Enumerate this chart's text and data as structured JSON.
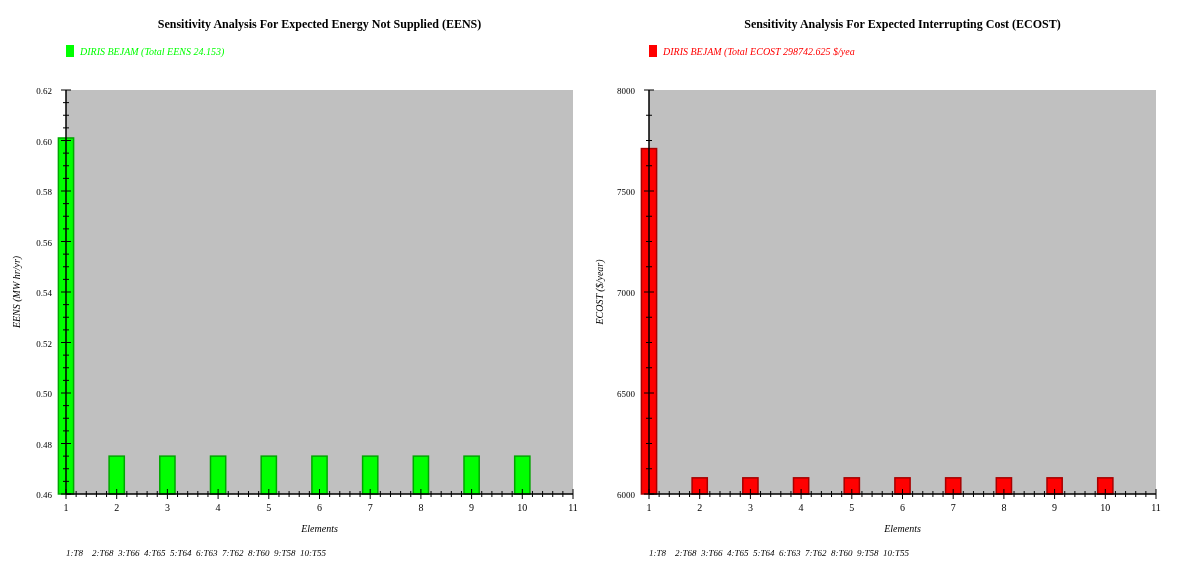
{
  "chart_data": [
    {
      "type": "bar",
      "title": "Sensitivity Analysis For Expected Energy Not Supplied (EENS)",
      "xlabel": "Elements",
      "ylabel": "EENS (MW hr/yr)",
      "x": [
        1,
        2,
        3,
        4,
        5,
        6,
        7,
        8,
        9,
        10
      ],
      "series": [
        {
          "name": "DIRIS BEJAM (Total EENS 24.153)",
          "color": "#00ff00",
          "values": [
            0.601,
            0.475,
            0.475,
            0.475,
            0.475,
            0.475,
            0.475,
            0.475,
            0.475,
            0.475
          ]
        }
      ],
      "xlim": [
        1,
        11
      ],
      "xticks": [
        1,
        2,
        3,
        4,
        5,
        6,
        7,
        8,
        9,
        10,
        11
      ],
      "ylim": [
        0.46,
        0.62
      ],
      "yticks": [
        0.46,
        0.48,
        {
          "value": 0.5,
          "label": "0.50"
        },
        0.52,
        0.54,
        0.56,
        0.58,
        {
          "value": 0.6,
          "label": "0.60"
        },
        0.62
      ],
      "annotations": [
        "1:T8",
        "2:T68",
        "3:T66",
        "4:T65",
        "5:T64",
        "6:T63",
        "7:T62",
        "8:T60",
        "9:T58",
        "10:T55"
      ],
      "legend": "top left",
      "grid": false
    },
    {
      "type": "bar",
      "title": "Sensitivity Analysis For Expected Interrupting Cost (ECOST)",
      "xlabel": "Elements",
      "ylabel": "ECOST ($/year)",
      "x": [
        1,
        2,
        3,
        4,
        5,
        6,
        7,
        8,
        9,
        10
      ],
      "series": [
        {
          "name": "DIRIS BEJAM (Total ECOST 298742.625 $/yea",
          "color": "#ff0000",
          "values": [
            7710,
            6080,
            6080,
            6080,
            6080,
            6080,
            6080,
            6080,
            6080,
            6080
          ]
        }
      ],
      "xlim": [
        1,
        11
      ],
      "xticks": [
        1,
        2,
        3,
        4,
        5,
        6,
        7,
        8,
        9,
        10,
        11
      ],
      "ylim": [
        6000,
        8000
      ],
      "yticks": [
        6000,
        6500,
        7000,
        7500,
        8000
      ],
      "annotations": [
        "1:T8",
        "2:T68",
        "3:T66",
        "4:T65",
        "5:T64",
        "6:T63",
        "7:T62",
        "8:T60",
        "9:T58",
        "10:T55"
      ],
      "legend": "top left",
      "grid": false
    }
  ]
}
